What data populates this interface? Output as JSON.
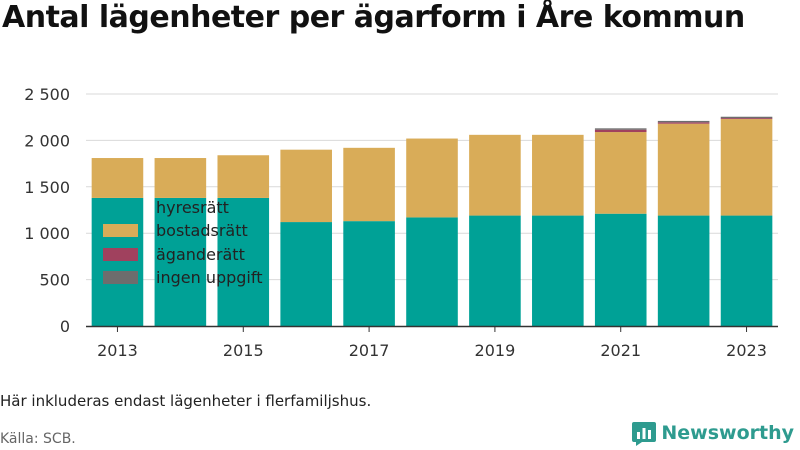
{
  "title": "Antal lägenheter per ägarform i Åre kommun",
  "note": "Här inkluderas endast lägenheter i flerfamiljshus.",
  "source": "Källa: SCB.",
  "brand": {
    "name": "Newsworthy",
    "icon": "newsworthy-chart-logo-icon"
  },
  "colors": {
    "hyresratt": "#00a196",
    "bostadsratt": "#d9ac58",
    "aganderatt": "#a0415e",
    "ingen_uppgift": "#6d6d6d",
    "grid": "#d9d9d9",
    "axis": "#333333",
    "brand": "#2e9b8f"
  },
  "legend": {
    "position": "left-center overlay",
    "items": [
      {
        "label": "hyresrätt",
        "color": "#00a196"
      },
      {
        "label": "bostadsrätt",
        "color": "#d9ac58"
      },
      {
        "label": "äganderätt",
        "color": "#a0415e"
      },
      {
        "label": "ingen uppgift",
        "color": "#6d6d6d"
      }
    ]
  },
  "chart_data": {
    "type": "bar",
    "stacked": true,
    "title": "Antal lägenheter per ägarform i Åre kommun",
    "xlabel": "",
    "ylabel": "",
    "categories": [
      "2013",
      "2014",
      "2015",
      "2016",
      "2017",
      "2018",
      "2019",
      "2020",
      "2021",
      "2022",
      "2023"
    ],
    "x_tick_labels": [
      "2013",
      "2015",
      "2017",
      "2019",
      "2021",
      "2023"
    ],
    "y_ticks": [
      0,
      500,
      1000,
      1500,
      2000,
      2500
    ],
    "y_tick_labels": [
      "0",
      "500",
      "1 000",
      "1 500",
      "2 000",
      "2 500"
    ],
    "ylim": [
      0,
      2500
    ],
    "grid": true,
    "series": [
      {
        "name": "hyresrätt",
        "color": "#00a196",
        "values": [
          1380,
          1380,
          1380,
          1120,
          1130,
          1170,
          1190,
          1190,
          1210,
          1190,
          1190
        ]
      },
      {
        "name": "bostadsrätt",
        "color": "#d9ac58",
        "values": [
          430,
          430,
          460,
          780,
          790,
          850,
          870,
          870,
          880,
          990,
          1040
        ]
      },
      {
        "name": "äganderätt",
        "color": "#a0415e",
        "values": [
          0,
          0,
          0,
          0,
          0,
          0,
          0,
          0,
          25,
          15,
          10
        ]
      },
      {
        "name": "ingen uppgift",
        "color": "#6d6d6d",
        "values": [
          0,
          0,
          0,
          0,
          0,
          0,
          0,
          0,
          15,
          15,
          15
        ]
      }
    ]
  }
}
